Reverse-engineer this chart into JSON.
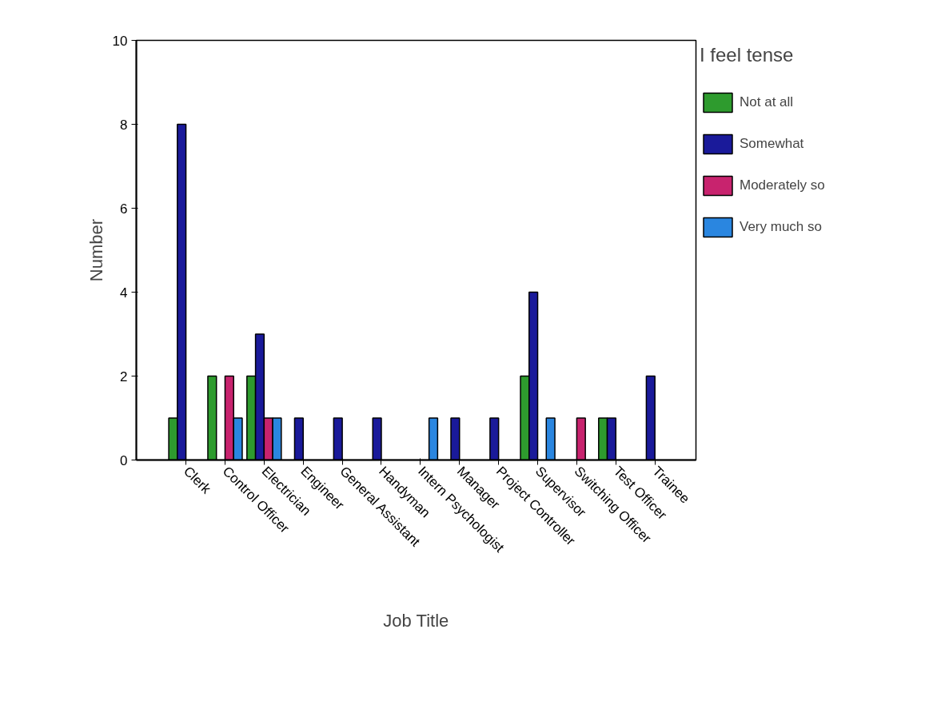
{
  "chart_data": {
    "type": "bar",
    "xlabel": "Job Title",
    "ylabel": "Number",
    "legend_title": "I feel tense",
    "legend": "right",
    "categories": [
      "Clerk",
      "Control Officer",
      "Electrician",
      "Engineer",
      "General Assistant",
      "Handyman",
      "Intern Psychologist",
      "Manager",
      "Project Controller",
      "Supervisor",
      "Switching Officer",
      "Test Officer",
      "Trainee"
    ],
    "series": [
      {
        "name": "Not at all",
        "color": "#2e9b2e",
        "values": [
          1,
          2,
          2,
          null,
          null,
          null,
          null,
          null,
          null,
          2,
          null,
          1,
          null
        ]
      },
      {
        "name": "Somewhat",
        "color": "#1a1a9a",
        "values": [
          8,
          null,
          3,
          1,
          1,
          1,
          null,
          1,
          1,
          4,
          null,
          1,
          2
        ]
      },
      {
        "name": "Moderately so",
        "color": "#c8236e",
        "values": [
          null,
          2,
          1,
          null,
          null,
          null,
          null,
          null,
          null,
          null,
          1,
          null,
          null
        ]
      },
      {
        "name": "Very much so",
        "color": "#2a86e0",
        "values": [
          null,
          1,
          1,
          null,
          null,
          null,
          1,
          null,
          null,
          1,
          null,
          null,
          null
        ]
      }
    ],
    "ylim": [
      0,
      10
    ],
    "yticks": [
      0,
      2,
      4,
      6,
      8,
      10
    ]
  }
}
